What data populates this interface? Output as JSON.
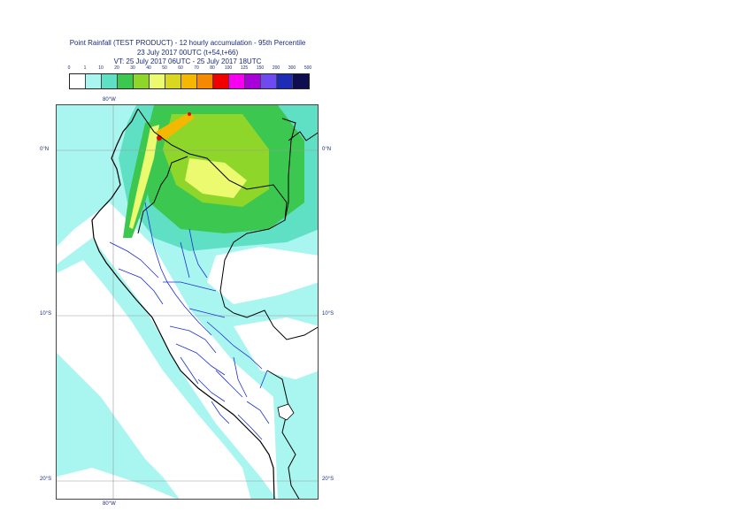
{
  "header": {
    "title_line1": "Point Rainfall (TEST PRODUCT) - 12 hourly accumulation - 95th Percentile",
    "title_line2": "23 July 2017 00UTC (t+54,t+66)",
    "title_line3": "VT: 25 July 2017 06UTC - 25 July 2017 18UTC"
  },
  "legend": {
    "ticks": [
      "0",
      "1",
      "10",
      "20",
      "30",
      "40",
      "50",
      "60",
      "70",
      "80",
      "100",
      "125",
      "150",
      "200",
      "300",
      "500"
    ],
    "colors": [
      "#ffffff",
      "#a9f5f0",
      "#5fe0c4",
      "#3cc850",
      "#8fd62a",
      "#ecfa70",
      "#d8d820",
      "#f5b800",
      "#f58a00",
      "#f00000",
      "#f500f0",
      "#a800d8",
      "#6e4bf0",
      "#1e2bb4",
      "#0d0d50"
    ]
  },
  "map": {
    "lon_label_top": "80°W",
    "lon_label_bottom": "80°W",
    "lat_labels": [
      "0°N",
      "10°S",
      "20°S"
    ],
    "colors": {
      "ocean_light": "#a9f5f0",
      "green_mid": "#5fe0c4",
      "green": "#3cc850",
      "yellow_green": "#8fd62a",
      "yellow": "#ecfa70",
      "orange": "#f5b800",
      "red": "#f00000",
      "coast": "#000000",
      "admin": "#1f2fd0",
      "grid": "#999999"
    }
  }
}
